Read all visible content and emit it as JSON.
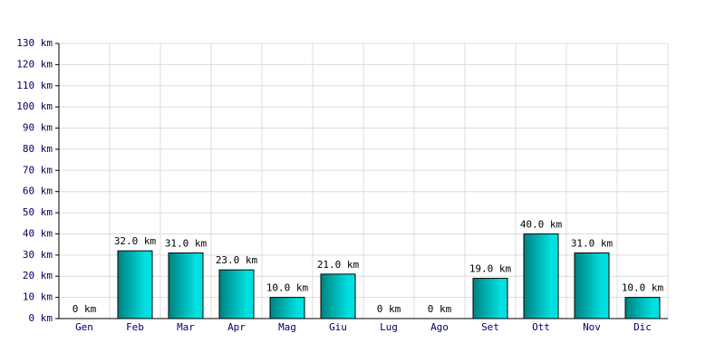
{
  "chart_data": {
    "type": "bar",
    "categories": [
      "Gen",
      "Feb",
      "Mar",
      "Apr",
      "Mag",
      "Giu",
      "Lug",
      "Ago",
      "Set",
      "Ott",
      "Nov",
      "Dic"
    ],
    "values": [
      0,
      32,
      31,
      23,
      10,
      21,
      0,
      0,
      19,
      40,
      31,
      10
    ],
    "value_labels": [
      "0 km",
      "32.0 km",
      "31.0 km",
      "23.0 km",
      "10.0 km",
      "21.0 km",
      "0 km",
      "0 km",
      "19.0 km",
      "40.0 km",
      "31.0 km",
      "10.0 km"
    ],
    "color": "#00e0e0",
    "ylim": [
      0,
      130
    ],
    "yticks": [
      {
        "value": 0,
        "label": "0 km"
      },
      {
        "value": 10,
        "label": "10 km"
      },
      {
        "value": 20,
        "label": "20 km"
      },
      {
        "value": 30,
        "label": "30 km"
      },
      {
        "value": 40,
        "label": "40 km"
      },
      {
        "value": 50,
        "label": "50 km"
      },
      {
        "value": 60,
        "label": "60 km"
      },
      {
        "value": 70,
        "label": "70 km"
      },
      {
        "value": 80,
        "label": "80 km"
      },
      {
        "value": 90,
        "label": "90 km"
      },
      {
        "value": 100,
        "label": "100 km"
      },
      {
        "value": 110,
        "label": "110 km"
      },
      {
        "value": 120,
        "label": "120 km"
      },
      {
        "value": 130,
        "label": "130 km"
      }
    ],
    "grid": true
  }
}
